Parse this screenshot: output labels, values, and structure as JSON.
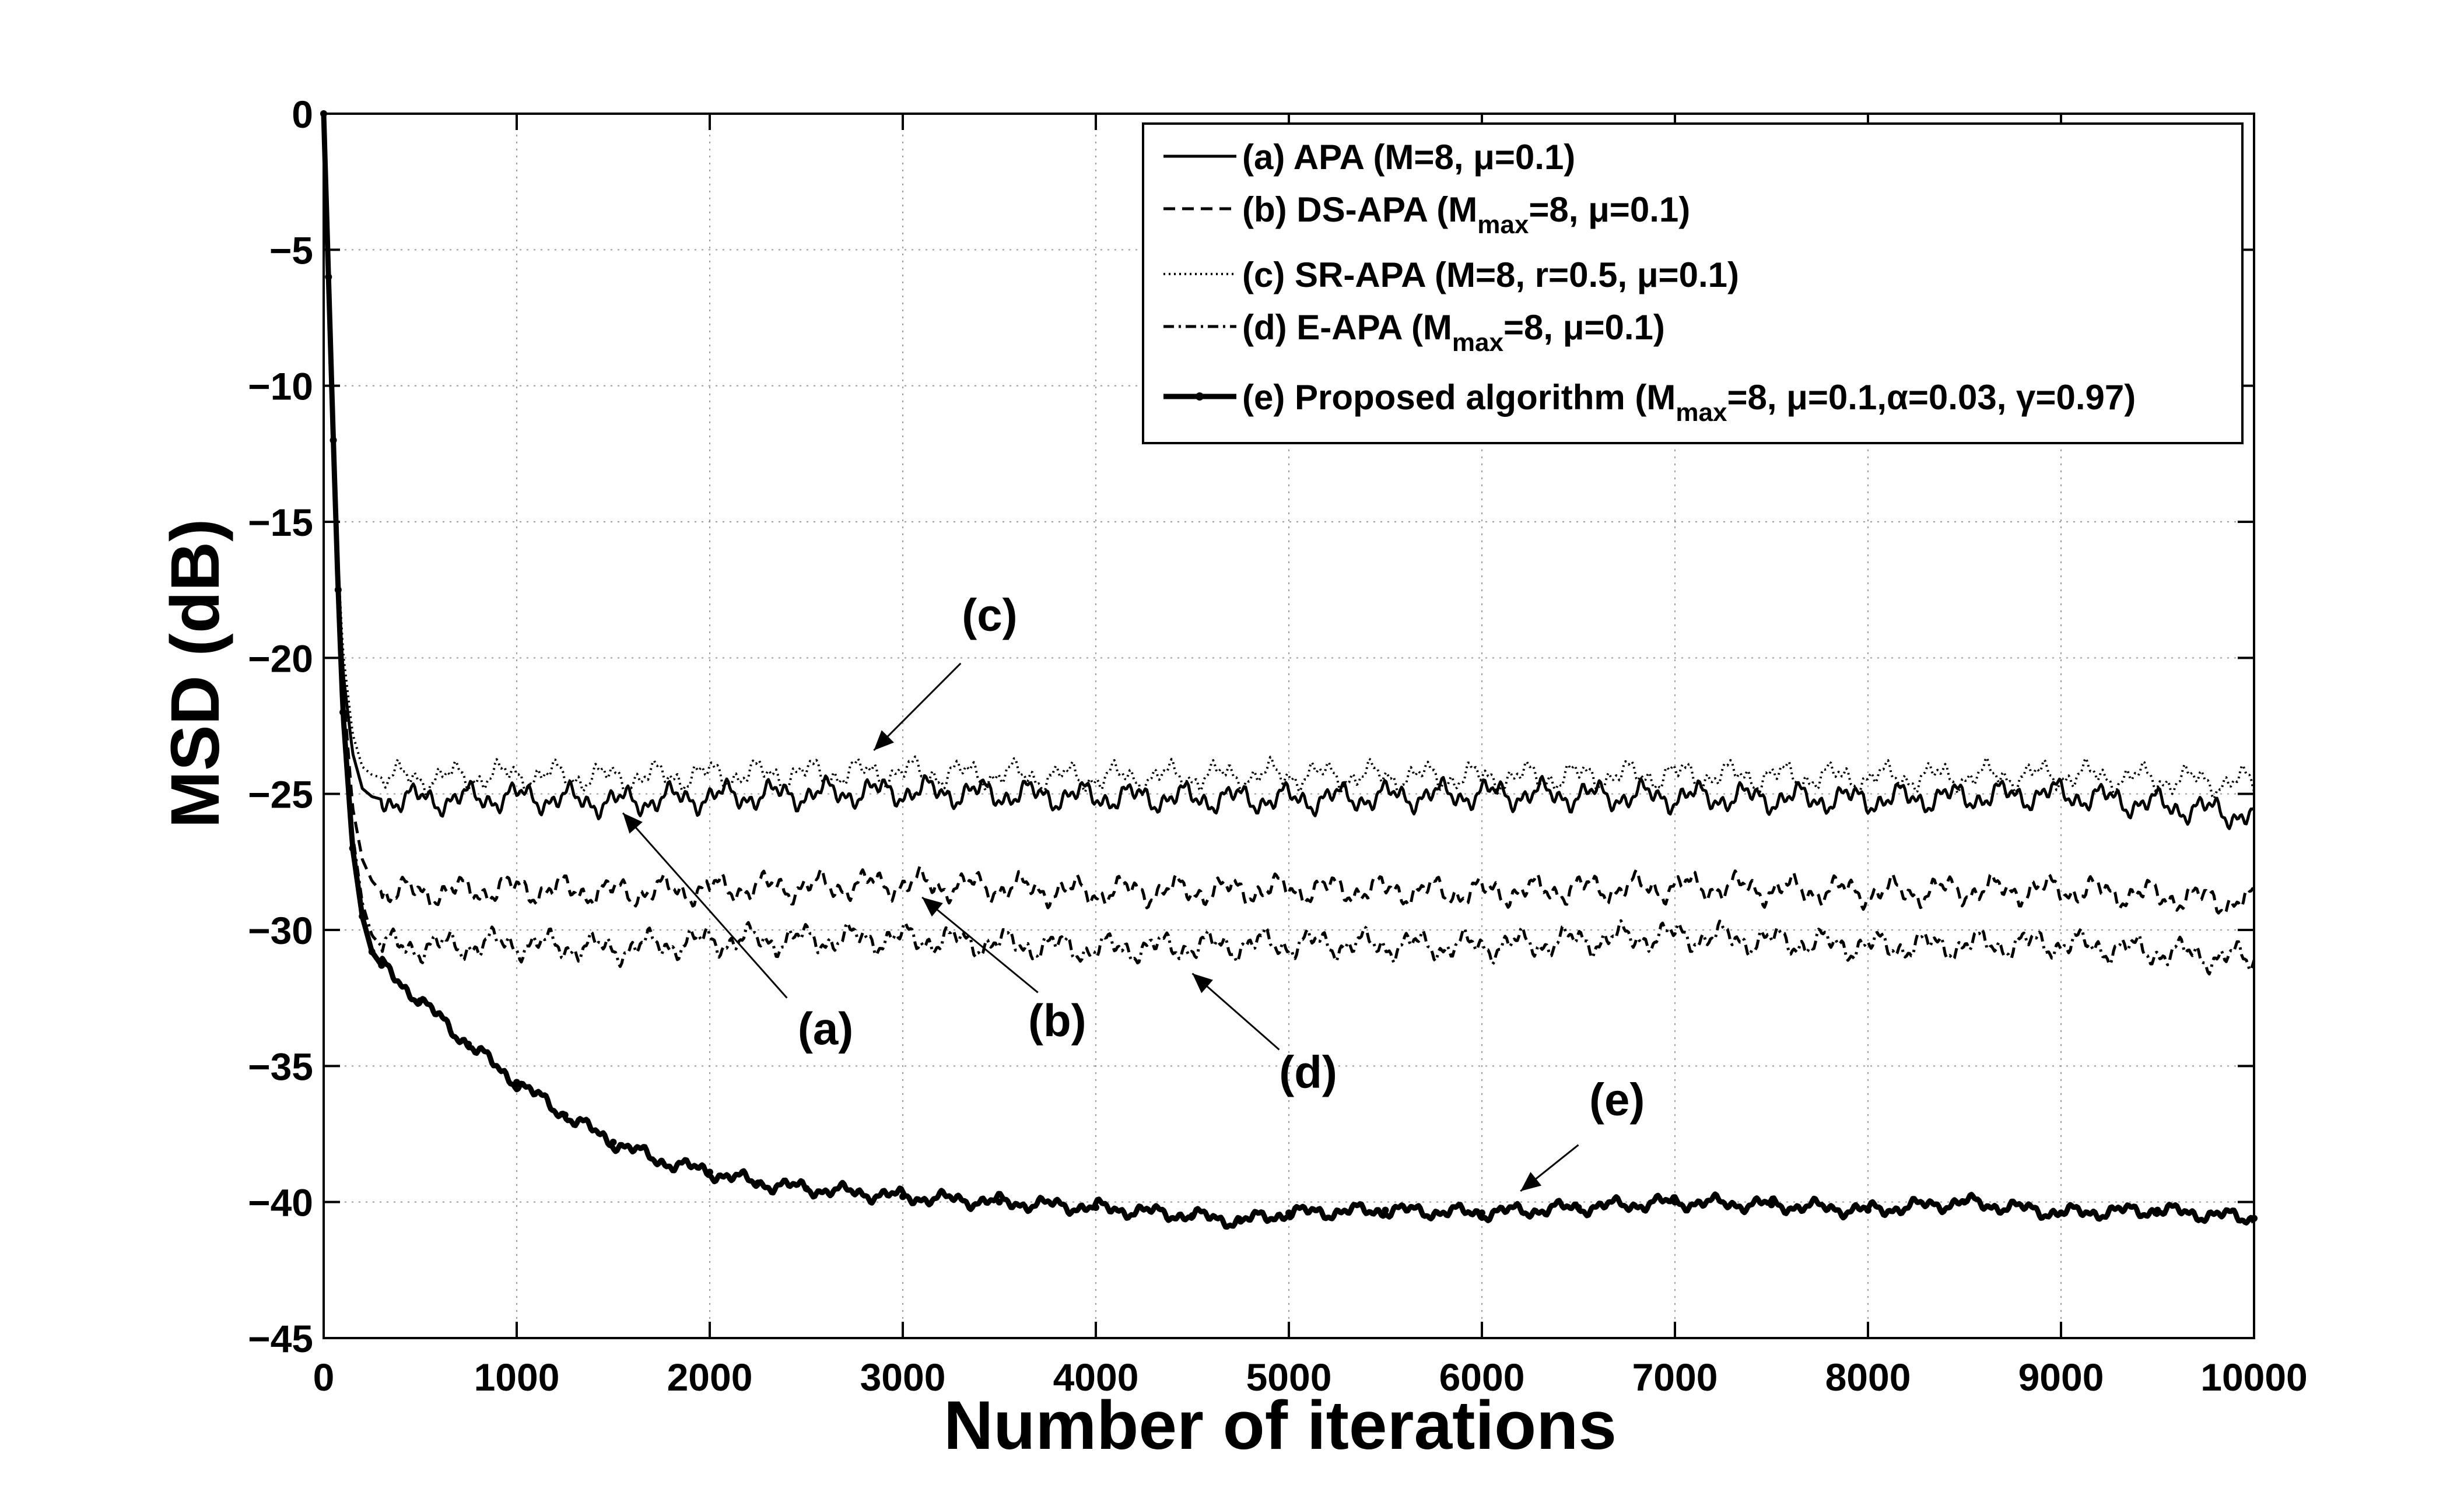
{
  "chart_data": {
    "type": "line",
    "xlabel": "Number of iterations",
    "ylabel": "MSD (dB)",
    "xlim": [
      0,
      10000
    ],
    "ylim": [
      -45,
      0
    ],
    "xticks": [
      0,
      1000,
      2000,
      3000,
      4000,
      5000,
      6000,
      7000,
      8000,
      9000,
      10000
    ],
    "yticks": [
      0,
      -5,
      -10,
      -15,
      -20,
      -25,
      -30,
      -35,
      -40,
      -45
    ],
    "xtick_labels": [
      "0",
      "1000",
      "2000",
      "3000",
      "4000",
      "5000",
      "6000",
      "7000",
      "8000",
      "9000",
      "10000"
    ],
    "ytick_labels": [
      "0",
      "−5",
      "−10",
      "−15",
      "−20",
      "−25",
      "−30",
      "−35",
      "−40",
      "−45"
    ],
    "grid": true,
    "legend_position": "top-right",
    "series": [
      {
        "id": "a",
        "name": "(a) APA (M=8, μ=0.1)",
        "legend_parts": [
          {
            "t": "(a) APA (M=8, μ=0.1)"
          }
        ],
        "line_style": "solid",
        "x": [
          0,
          25,
          50,
          75,
          100,
          150,
          200,
          250,
          300,
          600,
          1000,
          1500,
          2000,
          3000,
          4000,
          5000,
          6000,
          7000,
          8000,
          9000,
          10000
        ],
        "y": [
          0,
          -6,
          -12,
          -17,
          -20.5,
          -23.5,
          -24.8,
          -25.1,
          -25.2,
          -25.2,
          -25.1,
          -25.3,
          -25.1,
          -24.9,
          -25.1,
          -25.2,
          -25.0,
          -25.1,
          -25.2,
          -25.0,
          -25.8
        ]
      },
      {
        "id": "b",
        "name": "(b) DS-APA (Mmax=8, μ=0.1)",
        "legend_parts": [
          {
            "t": "(b) DS-APA (M"
          },
          {
            "t": "max",
            "sub": true
          },
          {
            "t": "=8, μ=0.1)"
          }
        ],
        "line_style": "dashed",
        "x": [
          0,
          25,
          50,
          75,
          100,
          150,
          200,
          250,
          300,
          600,
          1000,
          1500,
          2000,
          3000,
          4000,
          5000,
          6000,
          7000,
          8000,
          9000,
          10000
        ],
        "y": [
          0,
          -6,
          -12,
          -17,
          -21,
          -25.5,
          -27.4,
          -28.2,
          -28.6,
          -28.6,
          -28.5,
          -28.6,
          -28.5,
          -28.3,
          -28.6,
          -28.5,
          -28.6,
          -28.4,
          -28.6,
          -28.5,
          -29.0
        ]
      },
      {
        "id": "c",
        "name": "(c) SR-APA (M=8, r=0.5, μ=0.1)",
        "legend_parts": [
          {
            "t": "(c) SR-APA (M=8, r=0.5, μ=0.1)"
          }
        ],
        "line_style": "dotted",
        "x": [
          0,
          25,
          50,
          75,
          100,
          150,
          200,
          250,
          300,
          600,
          1000,
          1500,
          2000,
          3000,
          4000,
          5000,
          6000,
          7000,
          8000,
          9000,
          10000
        ],
        "y": [
          0,
          -6,
          -12,
          -16.5,
          -19.8,
          -22.8,
          -24.0,
          -24.3,
          -24.4,
          -24.4,
          -24.3,
          -24.4,
          -24.3,
          -24.2,
          -24.4,
          -24.3,
          -24.4,
          -24.3,
          -24.4,
          -24.3,
          -24.6
        ]
      },
      {
        "id": "d",
        "name": "(d) E-APA (Mmax=8, μ=0.1)",
        "legend_parts": [
          {
            "t": "(d) E-APA (M"
          },
          {
            "t": "max",
            "sub": true
          },
          {
            "t": "=8, μ=0.1)"
          }
        ],
        "line_style": "dashdot",
        "x": [
          0,
          25,
          50,
          75,
          100,
          150,
          200,
          250,
          300,
          600,
          1000,
          1500,
          2000,
          3000,
          4000,
          5000,
          6000,
          7000,
          8000,
          9000,
          10000
        ],
        "y": [
          0,
          -6,
          -12,
          -17.5,
          -22,
          -26.5,
          -29.0,
          -30.2,
          -30.6,
          -30.6,
          -30.5,
          -30.7,
          -30.4,
          -30.3,
          -30.7,
          -30.5,
          -30.6,
          -30.2,
          -30.6,
          -30.5,
          -31.1
        ]
      },
      {
        "id": "e",
        "name": "(e) Proposed algorithm (Mmax=8, μ=0.1,α=0.03, γ=0.97)",
        "legend_parts": [
          {
            "t": "(e) Proposed algorithm (M"
          },
          {
            "t": "max",
            "sub": true
          },
          {
            "t": "=8, μ=0.1,α=0.03, γ=0.97)"
          }
        ],
        "line_style": "solid-dotmarker",
        "x": [
          0,
          25,
          50,
          75,
          100,
          150,
          200,
          250,
          300,
          500,
          750,
          1000,
          1250,
          1500,
          1750,
          2000,
          2250,
          2500,
          3000,
          3500,
          4000,
          4500,
          4750,
          5000,
          5500,
          6000,
          6500,
          7000,
          7500,
          8000,
          8500,
          9000,
          9500,
          10000
        ],
        "y": [
          0,
          -6,
          -12,
          -17.5,
          -22,
          -27,
          -29.5,
          -30.8,
          -31.3,
          -32.6,
          -34.2,
          -35.6,
          -36.8,
          -37.8,
          -38.5,
          -38.9,
          -39.3,
          -39.5,
          -39.8,
          -40.0,
          -40.2,
          -40.5,
          -40.7,
          -40.4,
          -40.3,
          -40.4,
          -40.2,
          -40.0,
          -40.1,
          -40.3,
          -40.0,
          -40.4,
          -40.3,
          -40.6
        ]
      }
    ],
    "annotations": [
      {
        "label": "(a)",
        "text_at": [
          2600,
          -34.2
        ],
        "arrow_from": [
          2400,
          -32.5
        ],
        "arrow_to": [
          1550,
          -25.7
        ]
      },
      {
        "label": "(b)",
        "text_at": [
          3800,
          -33.9
        ],
        "arrow_from": [
          3700,
          -32.3
        ],
        "arrow_to": [
          3100,
          -28.8
        ]
      },
      {
        "label": "(c)",
        "text_at": [
          3450,
          -19.0
        ],
        "arrow_from": [
          3300,
          -20.2
        ],
        "arrow_to": [
          2850,
          -23.4
        ]
      },
      {
        "label": "(d)",
        "text_at": [
          5100,
          -35.8
        ],
        "arrow_from": [
          4950,
          -34.4
        ],
        "arrow_to": [
          4500,
          -31.6
        ]
      },
      {
        "label": "(e)",
        "text_at": [
          6700,
          -36.8
        ],
        "arrow_from": [
          6500,
          -37.9
        ],
        "arrow_to": [
          6200,
          -39.6
        ]
      }
    ]
  }
}
